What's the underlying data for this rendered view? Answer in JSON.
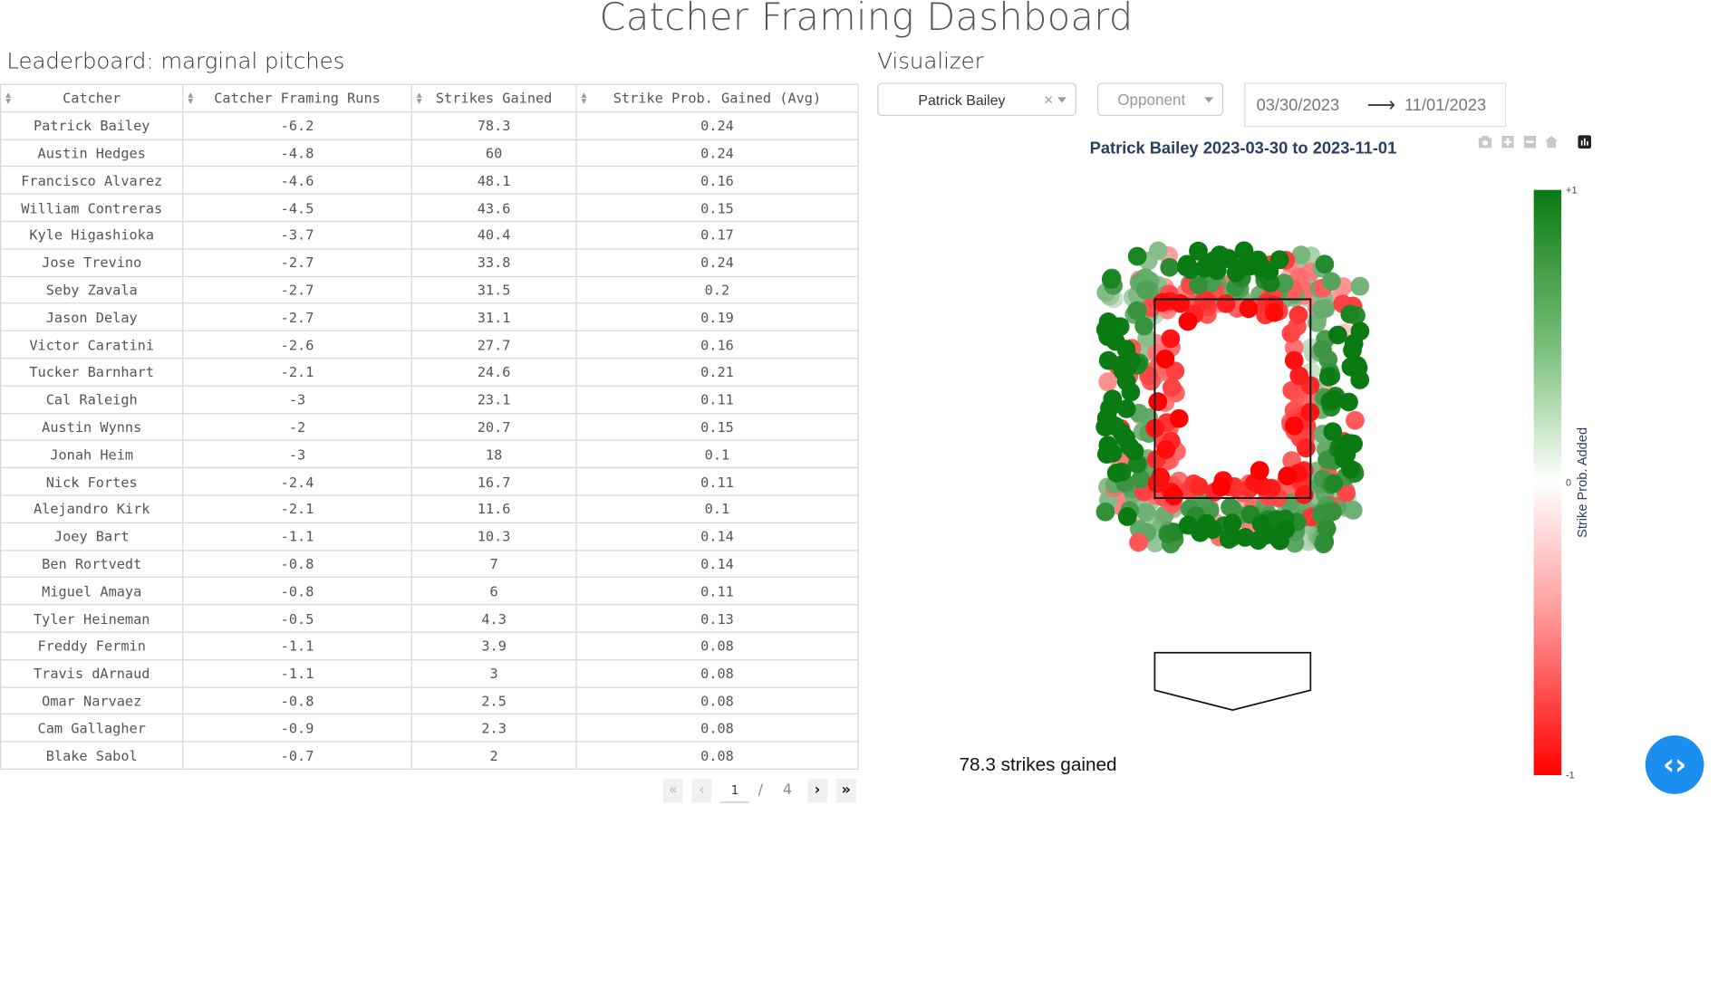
{
  "page": {
    "title": "Catcher Framing Dashboard"
  },
  "leaderboard": {
    "heading": "Leaderboard: marginal pitches",
    "columns": [
      "Catcher",
      "Catcher Framing Runs",
      "Strikes Gained",
      "Strike Prob. Gained (Avg)"
    ],
    "rows": [
      [
        "Patrick Bailey",
        "-6.2",
        "78.3",
        "0.24"
      ],
      [
        "Austin Hedges",
        "-4.8",
        "60",
        "0.24"
      ],
      [
        "Francisco Alvarez",
        "-4.6",
        "48.1",
        "0.16"
      ],
      [
        "William Contreras",
        "-4.5",
        "43.6",
        "0.15"
      ],
      [
        "Kyle Higashioka",
        "-3.7",
        "40.4",
        "0.17"
      ],
      [
        "Jose Trevino",
        "-2.7",
        "33.8",
        "0.24"
      ],
      [
        "Seby Zavala",
        "-2.7",
        "31.5",
        "0.2"
      ],
      [
        "Jason Delay",
        "-2.7",
        "31.1",
        "0.19"
      ],
      [
        "Victor Caratini",
        "-2.6",
        "27.7",
        "0.16"
      ],
      [
        "Tucker Barnhart",
        "-2.1",
        "24.6",
        "0.21"
      ],
      [
        "Cal Raleigh",
        "-3",
        "23.1",
        "0.11"
      ],
      [
        "Austin Wynns",
        "-2",
        "20.7",
        "0.15"
      ],
      [
        "Jonah Heim",
        "-3",
        "18",
        "0.1"
      ],
      [
        "Nick Fortes",
        "-2.4",
        "16.7",
        "0.11"
      ],
      [
        "Alejandro Kirk",
        "-2.1",
        "11.6",
        "0.1"
      ],
      [
        "Joey Bart",
        "-1.1",
        "10.3",
        "0.14"
      ],
      [
        "Ben Rortvedt",
        "-0.8",
        "7",
        "0.14"
      ],
      [
        "Miguel Amaya",
        "-0.8",
        "6",
        "0.11"
      ],
      [
        "Tyler Heineman",
        "-0.5",
        "4.3",
        "0.13"
      ],
      [
        "Freddy Fermin",
        "-1.1",
        "3.9",
        "0.08"
      ],
      [
        "Travis dArnaud",
        "-1.1",
        "3",
        "0.08"
      ],
      [
        "Omar Narvaez",
        "-0.8",
        "2.5",
        "0.08"
      ],
      [
        "Cam Gallagher",
        "-0.9",
        "2.3",
        "0.08"
      ],
      [
        "Blake Sabol",
        "-0.7",
        "2",
        "0.08"
      ]
    ],
    "pager": {
      "current": "1",
      "separator": "/",
      "total": "4"
    }
  },
  "visualizer": {
    "heading": "Visualizer",
    "catcher_select": {
      "value": "Patrick Bailey",
      "clear": "×"
    },
    "opponent_select": {
      "placeholder": "Opponent"
    },
    "date_range": {
      "start": "03/30/2023",
      "arrow": "⟶",
      "end": "11/01/2023"
    },
    "plot_title": "Patrick Bailey 2023-03-30 to 2023-11-01",
    "colorbar": {
      "label": "Strike Prob. Added",
      "ticks": {
        "top": "+1",
        "mid": "0",
        "bottom": "-1"
      },
      "colors": {
        "high": "#0a7a12",
        "mid": "#ffffff",
        "low": "#ff0000"
      }
    },
    "summary": "78.3 strikes gained"
  },
  "icons": {
    "modebar": [
      "camera-icon",
      "zoom-in-icon",
      "zoom-out-icon",
      "home-icon",
      "plotly-logo-icon"
    ],
    "fab": "code-brackets-icon"
  },
  "chart_data": {
    "type": "scatter",
    "title": "Patrick Bailey 2023-03-30 to 2023-11-01",
    "color_scale": {
      "min": -1,
      "max": 1,
      "label": "Strike Prob. Added"
    },
    "strike_zone": {
      "shape": "rectangle"
    },
    "home_plate": {
      "shape": "pentagon"
    }
  }
}
